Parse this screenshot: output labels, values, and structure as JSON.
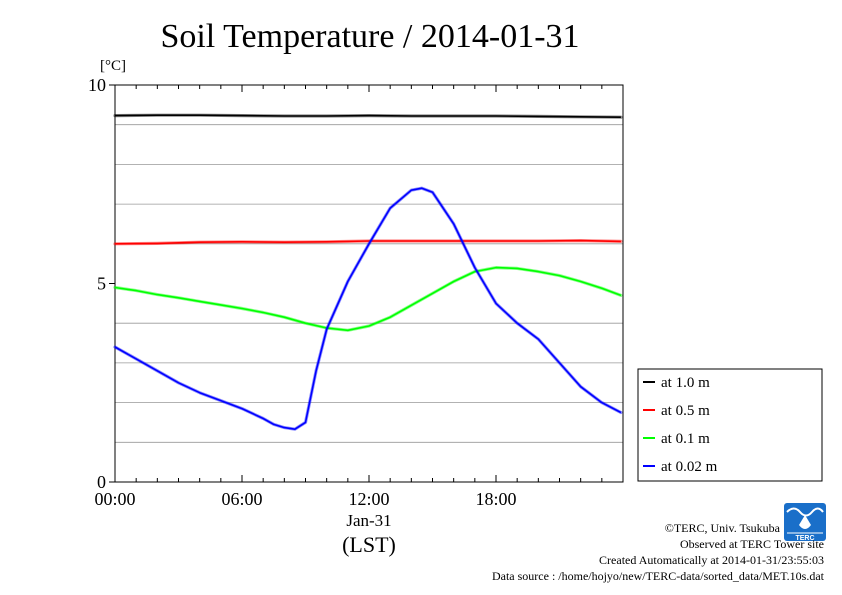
{
  "chart_data": {
    "type": "line",
    "title": "Soil Temperature / 2014-01-31",
    "ylabel": "[°C]",
    "xlabel": "(LST)",
    "date_label": "Jan-31",
    "xlim": [
      0,
      24
    ],
    "ylim": [
      0,
      10
    ],
    "yticks": [
      0,
      5,
      10
    ],
    "ytick_labels": [
      "0",
      "5",
      "10"
    ],
    "ygrid": [
      1,
      2,
      3,
      4,
      6,
      7,
      8,
      9
    ],
    "xticks": [
      0,
      6,
      12,
      18
    ],
    "xtick_labels": [
      "00:00",
      "06:00",
      "12:00",
      "18:00"
    ],
    "legend_position": "right, outside plot",
    "series": [
      {
        "name": "at 1.0 m",
        "color": "#000000",
        "x": [
          0,
          2,
          4,
          6,
          8,
          10,
          12,
          14,
          16,
          18,
          20,
          22,
          23.9
        ],
        "y": [
          9.23,
          9.24,
          9.24,
          9.23,
          9.22,
          9.22,
          9.23,
          9.22,
          9.22,
          9.22,
          9.21,
          9.2,
          9.19
        ]
      },
      {
        "name": "at 0.5 m",
        "color": "#ff0000",
        "x": [
          0,
          2,
          4,
          6,
          8,
          10,
          12,
          14,
          16,
          18,
          20,
          22,
          23.9
        ],
        "y": [
          6.0,
          6.01,
          6.04,
          6.05,
          6.04,
          6.05,
          6.07,
          6.07,
          6.07,
          6.07,
          6.07,
          6.08,
          6.06
        ]
      },
      {
        "name": "at 0.1 m",
        "color": "#00ff00",
        "x": [
          0,
          1,
          2,
          3,
          4,
          5,
          6,
          7,
          8,
          9,
          10,
          11,
          12,
          13,
          14,
          15,
          16,
          17,
          18,
          19,
          20,
          21,
          22,
          23,
          23.9
        ],
        "y": [
          4.9,
          4.82,
          4.72,
          4.64,
          4.55,
          4.46,
          4.37,
          4.27,
          4.15,
          4.0,
          3.88,
          3.82,
          3.93,
          4.15,
          4.45,
          4.75,
          5.05,
          5.3,
          5.4,
          5.38,
          5.3,
          5.2,
          5.05,
          4.88,
          4.7
        ]
      },
      {
        "name": "at 0.02 m",
        "color": "#0000ff",
        "x": [
          0,
          1,
          2,
          3,
          4,
          5,
          6,
          7,
          7.5,
          8,
          8.5,
          9,
          9.5,
          10,
          11,
          12,
          13,
          14,
          14.5,
          15,
          16,
          17,
          18,
          19,
          20,
          21,
          22,
          23,
          23.9
        ],
        "y": [
          3.4,
          3.1,
          2.8,
          2.5,
          2.25,
          2.05,
          1.85,
          1.6,
          1.45,
          1.37,
          1.33,
          1.5,
          2.8,
          3.85,
          5.05,
          6.0,
          6.9,
          7.35,
          7.4,
          7.3,
          6.5,
          5.4,
          4.5,
          4.0,
          3.6,
          3.0,
          2.4,
          2.0,
          1.75
        ]
      }
    ]
  },
  "credits": {
    "copyright": "©TERC, Univ. Tsukuba",
    "observed": "Observed at TERC Tower site",
    "created": "Created Automatically at 2014-01-31/23:55:03",
    "source": "Data source : /home/hojyo/new/TERC-data/sorted_data/MET.10s.dat"
  },
  "logo": {
    "icon": "terc-logo-icon",
    "text": "TERC",
    "color": "#1a6fc9"
  }
}
